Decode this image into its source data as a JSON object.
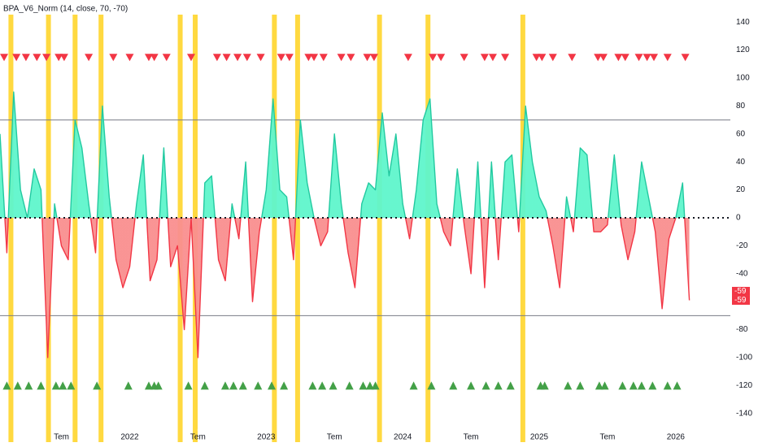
{
  "chart_data": {
    "type": "line",
    "title": "BPA_V6_Norm (14, close, 70, -70)",
    "x": [
      2021.05,
      2021.1,
      2021.15,
      2021.2,
      2021.25,
      2021.3,
      2021.35,
      2021.4,
      2021.45,
      2021.5,
      2021.55,
      2021.6,
      2021.65,
      2021.7,
      2021.75,
      2021.8,
      2021.85,
      2021.9,
      2021.95,
      2022.0,
      2022.05,
      2022.1,
      2022.15,
      2022.2,
      2022.25,
      2022.3,
      2022.35,
      2022.4,
      2022.45,
      2022.5,
      2022.55,
      2022.6,
      2022.65,
      2022.7,
      2022.75,
      2022.8,
      2022.85,
      2022.9,
      2022.95,
      2023.0,
      2023.05,
      2023.1,
      2023.15,
      2023.2,
      2023.25,
      2023.3,
      2023.35,
      2023.4,
      2023.45,
      2023.5,
      2023.55,
      2023.6,
      2023.65,
      2023.7,
      2023.75,
      2023.8,
      2023.85,
      2023.9,
      2023.95,
      2024.0,
      2024.05,
      2024.1,
      2024.15,
      2024.2,
      2024.25,
      2024.3,
      2024.35,
      2024.4,
      2024.45,
      2024.5,
      2024.55,
      2024.6,
      2024.65,
      2024.7,
      2024.75,
      2024.8,
      2024.85,
      2024.9,
      2024.95,
      2025.0,
      2025.05,
      2025.1,
      2025.15,
      2025.2,
      2025.25,
      2025.3,
      2025.35,
      2025.4,
      2025.45,
      2025.5,
      2025.55,
      2025.6,
      2025.65,
      2025.7,
      2025.75,
      2025.8,
      2025.85,
      2025.9,
      2025.95,
      2026.0,
      2026.05,
      2026.1
    ],
    "values": [
      60,
      -25,
      90,
      20,
      0,
      35,
      20,
      -100,
      10,
      -20,
      -30,
      70,
      50,
      10,
      -25,
      80,
      15,
      -30,
      -50,
      -35,
      10,
      45,
      -45,
      -30,
      50,
      -35,
      -20,
      -80,
      0,
      -100,
      25,
      30,
      -30,
      -45,
      10,
      -15,
      40,
      -60,
      -10,
      20,
      85,
      20,
      15,
      -30,
      70,
      25,
      0,
      -20,
      -10,
      60,
      10,
      -25,
      -50,
      10,
      25,
      20,
      75,
      30,
      60,
      10,
      -15,
      20,
      70,
      85,
      10,
      -10,
      -20,
      35,
      -5,
      -40,
      40,
      -50,
      40,
      -30,
      40,
      45,
      -10,
      80,
      40,
      15,
      5,
      -20,
      -50,
      15,
      -10,
      50,
      45,
      -10,
      -10,
      -5,
      45,
      -5,
      -30,
      -10,
      40,
      15,
      -10,
      -65,
      -15,
      0,
      25,
      -59
    ],
    "last_value_labels": [
      -59,
      -59
    ],
    "colors": {
      "positive_line": "#22c9a0",
      "negative_line": "#f23645",
      "positive_fill": "#5ff5cc",
      "negative_fill": "#f98f8f",
      "highlight": "#ffd21f",
      "sell": "#f23645",
      "buy": "#43a047"
    },
    "xlim": [
      2021.05,
      2026.4
    ],
    "xticks": [
      {
        "value": 2021.5,
        "label": "Tem"
      },
      {
        "value": 2022,
        "label": "2022"
      },
      {
        "value": 2022.5,
        "label": "Tem"
      },
      {
        "value": 2023,
        "label": "2023"
      },
      {
        "value": 2023.5,
        "label": "Tem"
      },
      {
        "value": 2024,
        "label": "2024"
      },
      {
        "value": 2024.5,
        "label": "Tem"
      },
      {
        "value": 2025,
        "label": "2025"
      },
      {
        "value": 2025.5,
        "label": "Tem"
      },
      {
        "value": 2026,
        "label": "2026"
      }
    ],
    "ylim": [
      -150,
      150
    ],
    "yticks": [
      140,
      120,
      100,
      80,
      60,
      40,
      20,
      0,
      -20,
      -40,
      -60,
      -80,
      -100,
      -120,
      -140
    ],
    "levels": [
      70,
      -70
    ],
    "zero_line": 0,
    "highlights": [
      2021.13,
      2021.405,
      2021.6,
      2021.79,
      2022.37,
      2022.48,
      2023.06,
      2023.23,
      2023.83,
      2024.185,
      2024.88
    ],
    "sell_markers": {
      "level": 115,
      "x": [
        2021.08,
        2021.17,
        2021.24,
        2021.32,
        2021.39,
        2021.48,
        2021.52,
        2021.7,
        2021.88,
        2022.0,
        2022.14,
        2022.18,
        2022.27,
        2022.45,
        2022.64,
        2022.71,
        2022.79,
        2022.86,
        2022.96,
        2023.11,
        2023.17,
        2023.31,
        2023.35,
        2023.42,
        2023.55,
        2023.62,
        2023.74,
        2023.79,
        2024.04,
        2024.22,
        2024.28,
        2024.45,
        2024.6,
        2024.66,
        2024.75,
        2024.98,
        2025.02,
        2025.1,
        2025.24,
        2025.43,
        2025.47,
        2025.58,
        2025.63,
        2025.73,
        2025.79,
        2025.84,
        2025.94,
        2026.07
      ]
    },
    "buy_markers": {
      "level": -120,
      "x": [
        2021.1,
        2021.18,
        2021.26,
        2021.35,
        2021.46,
        2021.51,
        2021.57,
        2021.76,
        2021.99,
        2022.14,
        2022.18,
        2022.21,
        2022.43,
        2022.55,
        2022.7,
        2022.76,
        2022.83,
        2022.94,
        2023.04,
        2023.13,
        2023.34,
        2023.41,
        2023.49,
        2023.61,
        2023.71,
        2023.76,
        2023.8,
        2024.08,
        2024.21,
        2024.37,
        2024.5,
        2024.61,
        2024.7,
        2024.79,
        2025.01,
        2025.04,
        2025.21,
        2025.3,
        2025.44,
        2025.48,
        2025.61,
        2025.69,
        2025.75,
        2025.83,
        2025.94,
        2026.01
      ]
    }
  }
}
